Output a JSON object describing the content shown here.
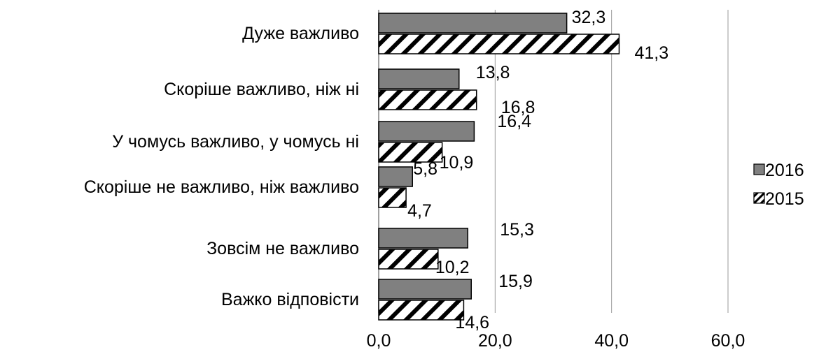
{
  "chart_data": {
    "type": "bar",
    "orientation": "horizontal",
    "categories": [
      "Дуже важливо",
      "Скоріше важливо, ніж ні",
      "У чомусь важливо, у чомусь ні",
      "Скоріше не важливо, ніж важливо",
      "Зовсім не важливо",
      "Важко відповісти"
    ],
    "series": [
      {
        "name": "2016",
        "values": [
          32.3,
          13.8,
          16.4,
          5.8,
          15.3,
          15.9
        ],
        "labels": [
          "32,3",
          "13,8",
          "16,4",
          "5,8",
          "15,3",
          "15,9"
        ],
        "fill": "solid-gray",
        "color": "#808080"
      },
      {
        "name": "2015",
        "values": [
          41.3,
          16.8,
          10.9,
          4.7,
          10.2,
          14.6
        ],
        "labels": [
          "41,3",
          "16,8",
          "10,9",
          "4,7",
          "10,2",
          "14,6"
        ],
        "fill": "diagonal-hatch",
        "color": "#000000"
      }
    ],
    "xlim": [
      0,
      60
    ],
    "xticks": [
      0,
      20,
      40,
      60
    ],
    "xtick_labels": [
      "0,0",
      "20,0",
      "40,0",
      "60,0"
    ],
    "grid": true,
    "legend": "right"
  }
}
